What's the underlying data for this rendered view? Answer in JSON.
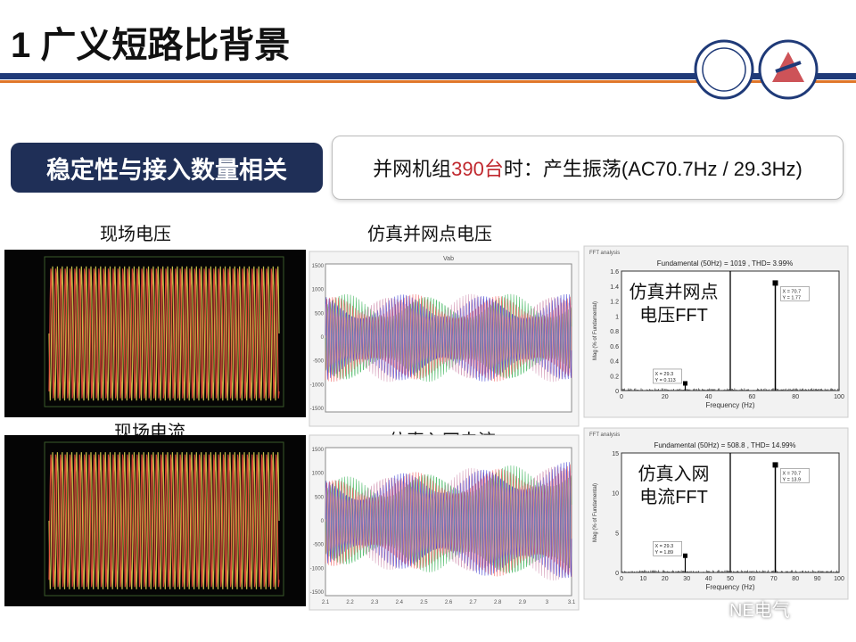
{
  "header": {
    "title": "1 广义短路比背景"
  },
  "section": {
    "tag": "稳定性与接入数量相关",
    "statement": {
      "before": "并网机组",
      "highlight": "390台",
      "after": "时：产生振荡(AC70.7Hz / 29.3Hz)"
    }
  },
  "panels": [
    {
      "label": "现场电压"
    },
    {
      "label": "仿真并网点电压",
      "plot_title": "Vab",
      "yticks": [
        "1500",
        "1000",
        "500",
        "0",
        "-500",
        "-1000",
        "-1500"
      ]
    },
    {
      "label": "现场电流"
    },
    {
      "label": "仿真入网电流",
      "yticks": [
        "1500",
        "1000",
        "500",
        "0",
        "-500",
        "-1000",
        "-1500"
      ],
      "xticks": [
        "2.1",
        "2.2",
        "2.3",
        "2.4",
        "2.5",
        "2.6",
        "2.7",
        "2.8",
        "2.9",
        "3",
        "3.1"
      ]
    }
  ],
  "fft": [
    {
      "header": "FFT analysis",
      "title": "Fundamental (50Hz) = 1019 , THD= 3.99%",
      "overlay": [
        "仿真并网点",
        "电压FFT"
      ],
      "xlabel": "Frequency (Hz)",
      "ylabel": "Mag (% of Fundamental)",
      "xticks": [
        "0",
        "20",
        "40",
        "60",
        "80",
        "100"
      ],
      "yticks": [
        "0",
        "0.2",
        "0.4",
        "0.6",
        "0.8",
        "1",
        "1.2",
        "1.4",
        "1.6"
      ],
      "markers": [
        [
          "X = 70.7",
          "Y = 1.77"
        ],
        [
          "X = 29.3",
          "Y = 0.113"
        ]
      ]
    },
    {
      "header": "FFT analysis",
      "title": "Fundamental (50Hz) = 508.8 , THD= 14.99%",
      "overlay": [
        "仿真入网",
        "电流FFT"
      ],
      "xlabel": "Frequency (Hz)",
      "ylabel": "Mag (% of Fundamental)",
      "xticks": [
        "0",
        "10",
        "20",
        "30",
        "40",
        "50",
        "60",
        "70",
        "80",
        "90",
        "100"
      ],
      "yticks": [
        "0",
        "5",
        "10",
        "15"
      ],
      "markers": [
        [
          "X = 70.7",
          "Y = 13.9"
        ],
        [
          "X = 29.3",
          "Y = 1.89"
        ]
      ]
    }
  ],
  "watermark": "NE电气"
}
